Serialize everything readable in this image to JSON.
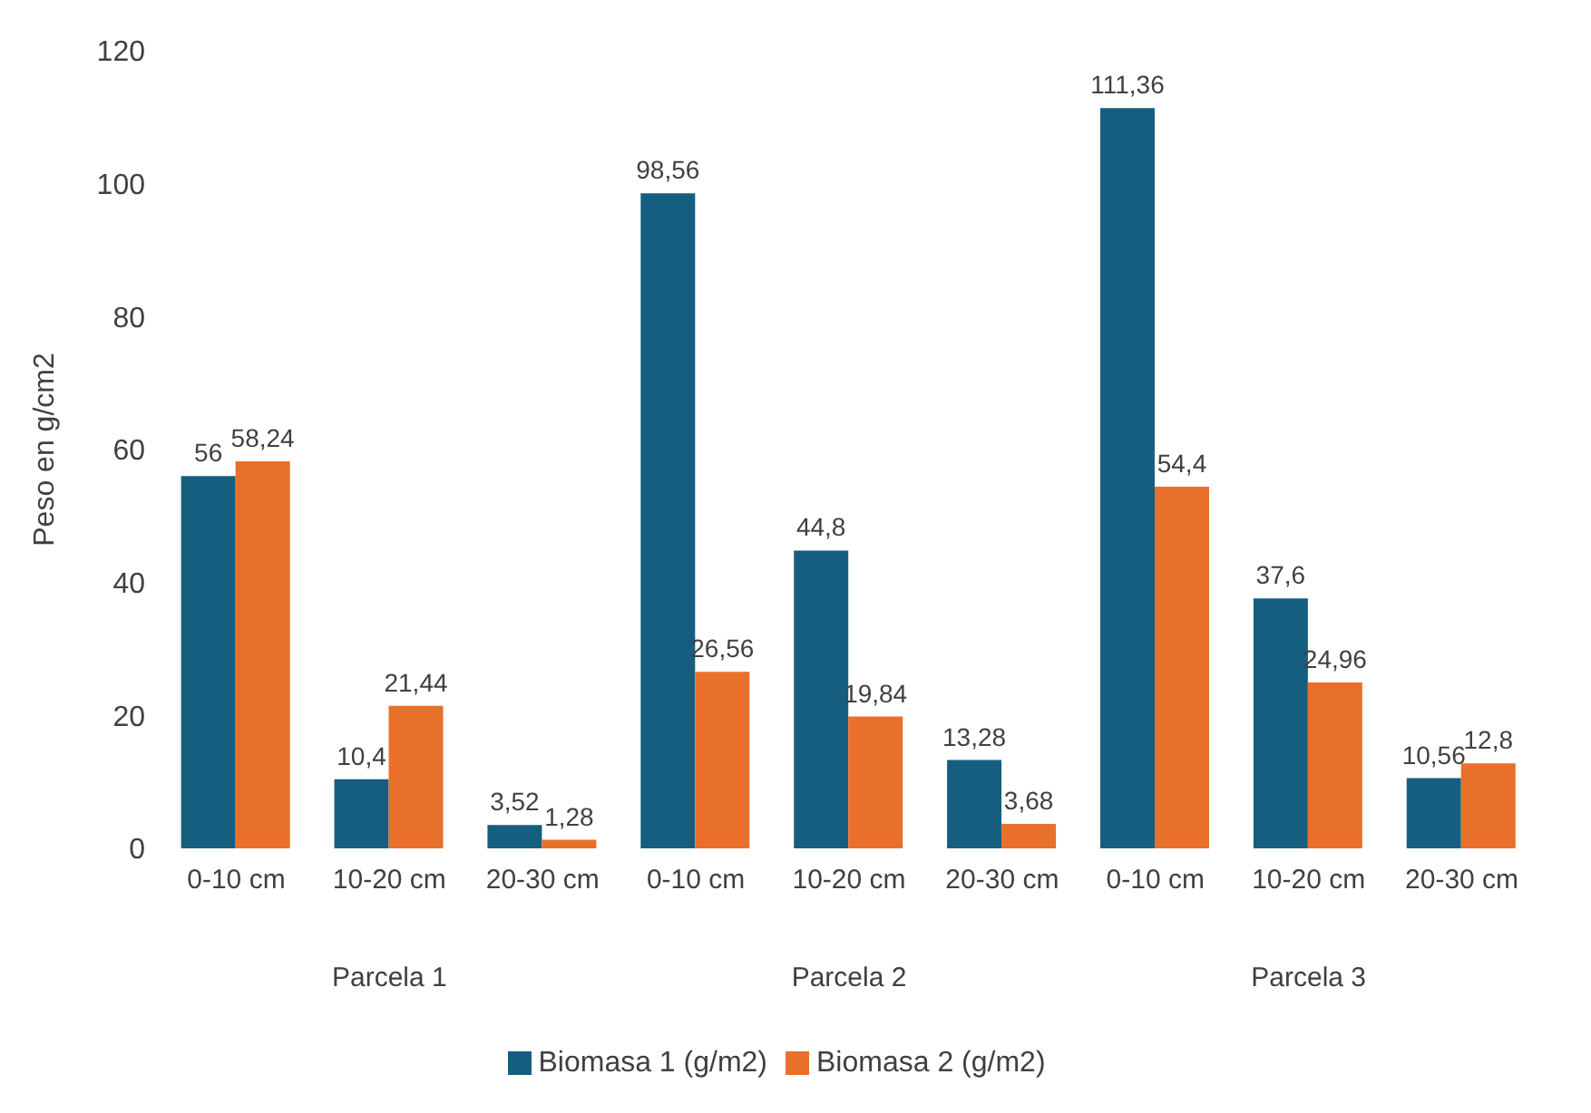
{
  "chart_data": {
    "type": "bar",
    "ylabel": "Peso en g/cm2",
    "categories": [
      "0-10 cm",
      "10-20 cm",
      "20-30 cm",
      "0-10 cm",
      "10-20 cm",
      "20-30 cm",
      "0-10 cm",
      "10-20 cm",
      "20-30 cm"
    ],
    "series": [
      {
        "name": "Biomasa 1 (g/m2)",
        "color": "#165e80",
        "values": [
          56,
          10.4,
          3.52,
          98.56,
          44.8,
          13.28,
          111.36,
          37.6,
          10.56
        ],
        "value_labels": [
          "56",
          "10,4",
          "3,52",
          "98,56",
          "44,8",
          "13,28",
          "111,36",
          "37,6",
          "10,56"
        ]
      },
      {
        "name": "Biomasa 2 (g/m2)",
        "color": "#e8702a",
        "values": [
          58.24,
          21.44,
          1.28,
          26.56,
          19.84,
          3.68,
          54.4,
          24.96,
          12.8
        ],
        "value_labels": [
          "58,24",
          "21,44",
          "1,28",
          "26,56",
          "19,84",
          "3,68",
          "54,4",
          "24,96",
          "12,8"
        ]
      }
    ],
    "ylim": [
      0,
      120
    ],
    "yticks": [
      0,
      20,
      40,
      60,
      80,
      100,
      120
    ],
    "grid": false,
    "legend": "bottom",
    "annotations": [
      "Parcela 1",
      "Parcela 2",
      "Parcela 3"
    ]
  }
}
